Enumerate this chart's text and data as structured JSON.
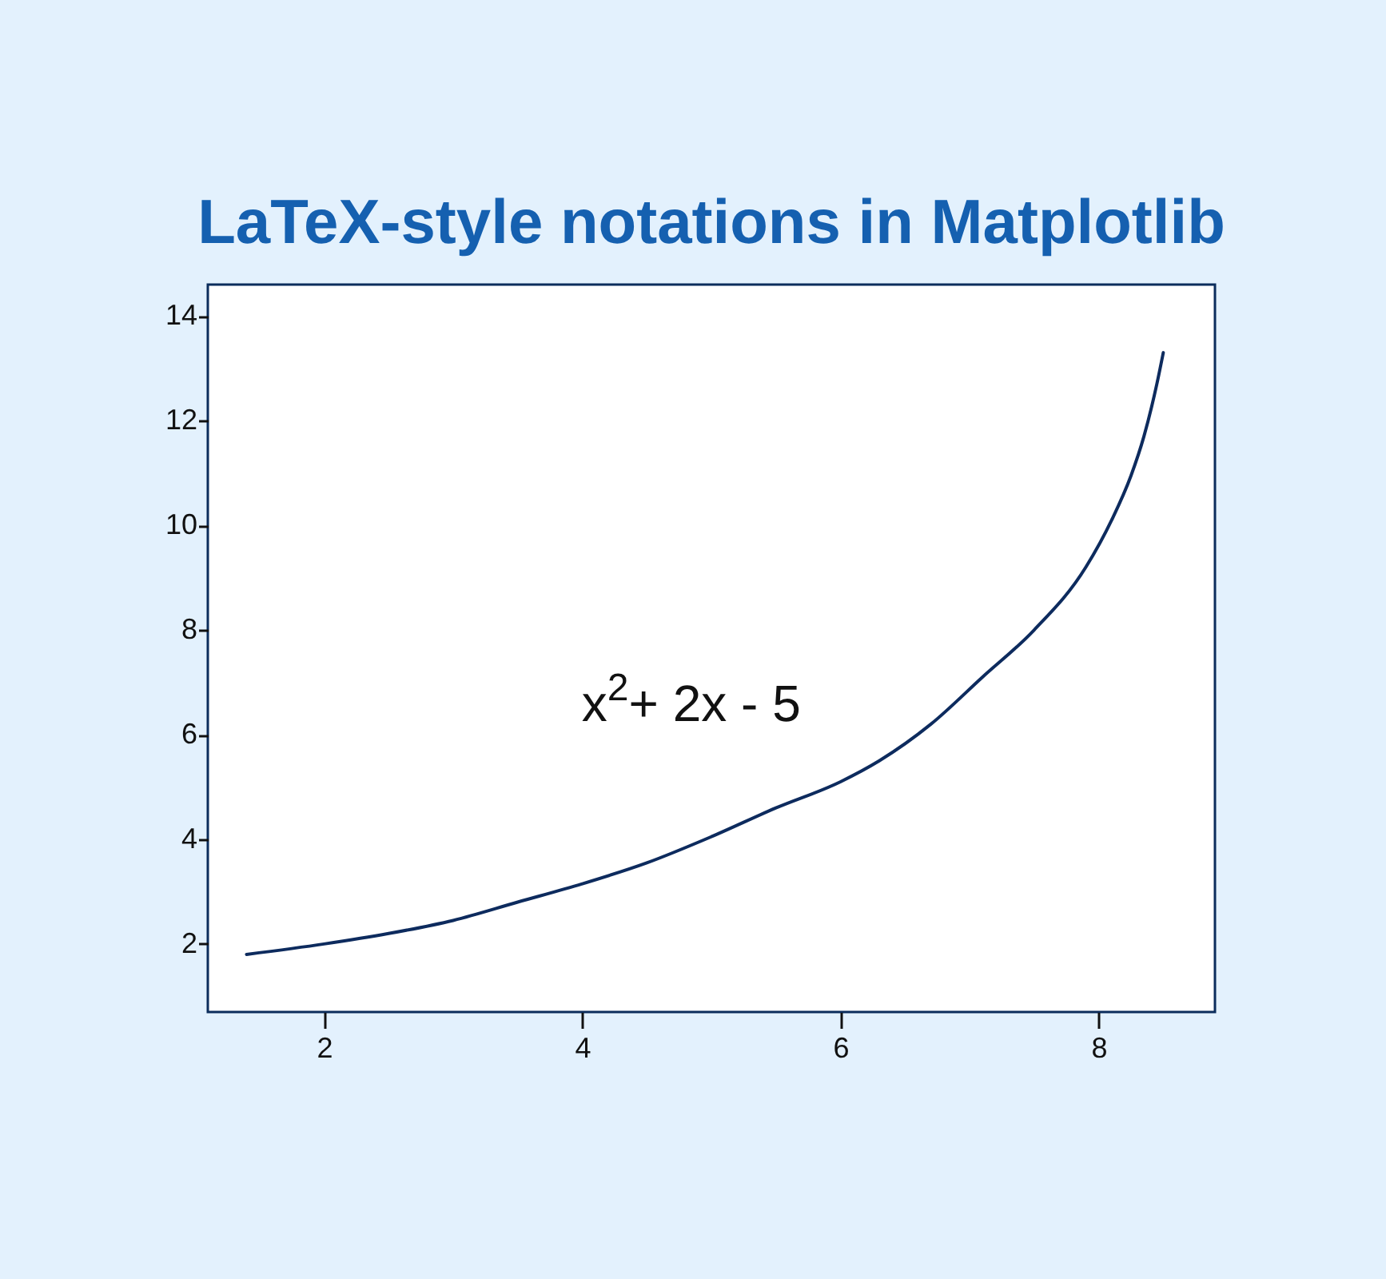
{
  "chart_data": {
    "type": "line",
    "title": "LaTeX-style notations in Matplotlib",
    "annotations": [
      "x$^{2}$+ 2x - 5"
    ],
    "x": [
      1.4,
      2,
      2.5,
      3,
      3.5,
      4,
      4.5,
      5,
      5.5,
      6,
      6.3,
      6.7,
      7.1,
      7.5,
      7.9,
      8.1,
      8.25,
      8.35,
      8.45,
      8.5
    ],
    "series": [
      {
        "color": "#0d2b5e",
        "values": [
          1.8,
          2.0,
          2.2,
          2.45,
          2.8,
          3.15,
          3.55,
          4.05,
          4.6,
          5.1,
          5.5,
          6.2,
          7.1,
          8.0,
          9.2,
          10.1,
          10.95,
          11.7,
          12.7,
          13.3
        ]
      }
    ],
    "xlim": [
      1.1,
      8.9
    ],
    "ylim": [
      0.7,
      14.6
    ],
    "xticks": [
      2,
      4,
      6,
      8
    ],
    "yticks": [
      2,
      4,
      6,
      8,
      10,
      12,
      14
    ],
    "grid": false
  }
}
